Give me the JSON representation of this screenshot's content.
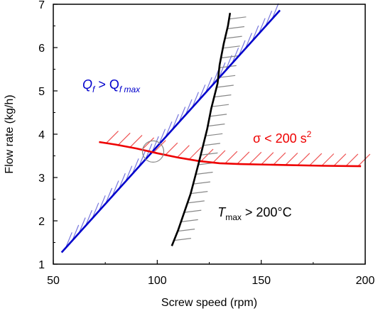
{
  "colors": {
    "flow_line": "#0000cc",
    "flow_hatch": "#7777dd",
    "stress_line": "#ee0000",
    "stress_hatch": "#ee5555",
    "temp_line": "#000000",
    "temp_hatch": "#888888",
    "circle": "#888888"
  },
  "chart_data": {
    "type": "line",
    "title": "",
    "xlabel": "Screw speed (rpm)",
    "ylabel": "Flow rate (kg/h)",
    "xlim": [
      50,
      200
    ],
    "ylim": [
      1,
      7
    ],
    "xticks": [
      50,
      100,
      150,
      200
    ],
    "yticks": [
      1,
      2,
      3,
      4,
      5,
      6,
      7
    ],
    "xtick_labels": [
      "50",
      "100",
      "150",
      "200"
    ],
    "ytick_labels": [
      "1",
      "2",
      "3",
      "4",
      "5",
      "6",
      "7"
    ],
    "grid": false,
    "legend": "none",
    "series": [
      {
        "color_key": "flow_line",
        "hatch_side": "above",
        "points": [
          [
            54,
            1.27
          ],
          [
            159,
            6.86
          ]
        ]
      },
      {
        "color_key": "stress_line",
        "hatch_side": "above",
        "points": [
          [
            72,
            3.82
          ],
          [
            80,
            3.76
          ],
          [
            90,
            3.67
          ],
          [
            100,
            3.56
          ],
          [
            110,
            3.46
          ],
          [
            120,
            3.38
          ],
          [
            130,
            3.33
          ],
          [
            140,
            3.31
          ],
          [
            160,
            3.29
          ],
          [
            180,
            3.27
          ],
          [
            198,
            3.26
          ]
        ]
      },
      {
        "color_key": "temp_line",
        "hatch_side": "right",
        "points": [
          [
            107,
            1.42
          ],
          [
            110,
            1.78
          ],
          [
            113,
            2.2
          ],
          [
            116,
            2.62
          ],
          [
            118,
            2.98
          ],
          [
            120,
            3.35
          ],
          [
            122,
            3.73
          ],
          [
            124,
            4.12
          ],
          [
            126,
            4.6
          ],
          [
            129,
            5.17
          ],
          [
            130,
            5.6
          ],
          [
            132,
            6.1
          ],
          [
            134,
            6.5
          ],
          [
            135,
            6.8
          ]
        ]
      }
    ],
    "annotations": [
      {
        "id": "flow",
        "color_key": "flow_line",
        "main": "Q",
        "sub1": "f",
        "mid": " > Q",
        "sub2": "f max",
        "x": 64,
        "y": 5.05
      },
      {
        "id": "stress",
        "color_key": "stress_line",
        "main": "σ < 200 s",
        "sup": "2",
        "x": 146,
        "y": 3.8
      },
      {
        "id": "temp",
        "color_key": "temp_line",
        "main": "T",
        "sub": "max",
        "rest": " > 200°C",
        "x": 129,
        "y": 2.1
      }
    ],
    "marker_circle": {
      "x": 98,
      "y": 3.6,
      "r": 1.6
    }
  }
}
